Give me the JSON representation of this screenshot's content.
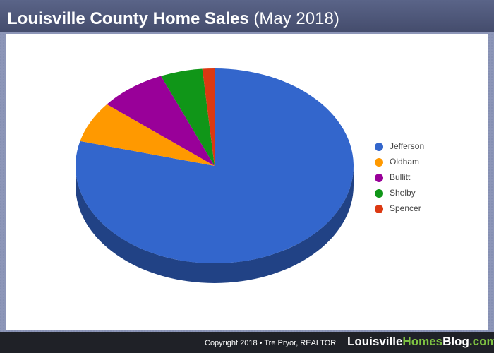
{
  "chart_data": {
    "type": "pie",
    "title": "Louisville County Home Sales",
    "subtitle": "(May 2018)",
    "categories": [
      "Jefferson",
      "Oldham",
      "Bullitt",
      "Shelby",
      "Spencer"
    ],
    "values": [
      79.1,
      6.8,
      7.8,
      4.9,
      1.4
    ],
    "colors": [
      "#3366cc",
      "#ff9900",
      "#990099",
      "#109618",
      "#dc3912"
    ],
    "legend": "right"
  },
  "footer": {
    "copyright": "Copyright 2018 • Tre Pryor, REALTOR",
    "brand": [
      "Louisville",
      "Homes",
      "Blog",
      ".com"
    ]
  }
}
